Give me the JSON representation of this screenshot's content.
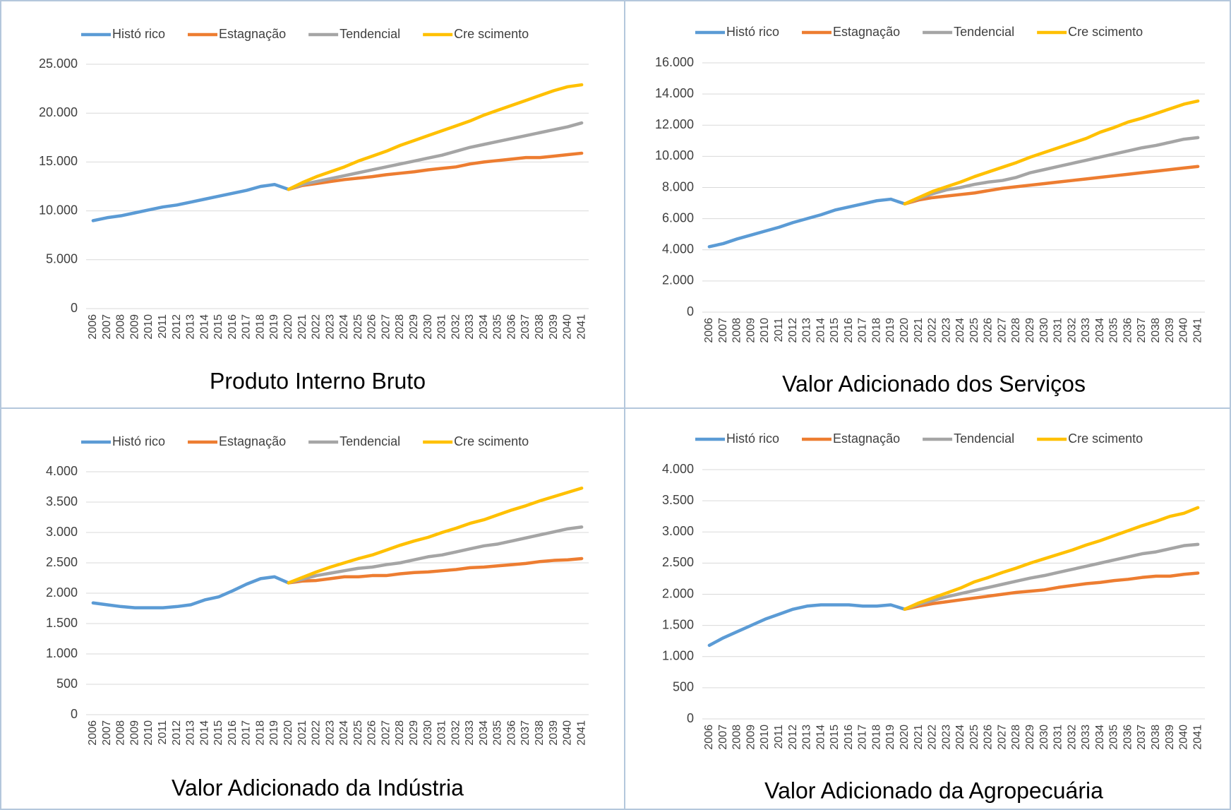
{
  "chart_data": [
    {
      "type": "line",
      "title": "Produto Interno Bruto",
      "categories": [
        "2006",
        "2007",
        "2008",
        "2009",
        "2010",
        "2011",
        "2012",
        "2013",
        "2014",
        "2015",
        "2016",
        "2017",
        "2018",
        "2019",
        "2020",
        "2021",
        "2022",
        "2023",
        "2024",
        "2025",
        "2026",
        "2027",
        "2028",
        "2029",
        "2030",
        "2031",
        "2032",
        "2033",
        "2034",
        "2035",
        "2036",
        "2037",
        "2038",
        "2039",
        "2040",
        "2041"
      ],
      "series": [
        {
          "name": "Histó rico",
          "color": "#5b9bd5",
          "values": [
            9000,
            9300,
            9500,
            9800,
            10100,
            10400,
            10600,
            10900,
            11200,
            11500,
            11800,
            12100,
            12500,
            12700,
            12200,
            null,
            null,
            null,
            null,
            null,
            null,
            null,
            null,
            null,
            null,
            null,
            null,
            null,
            null,
            null,
            null,
            null,
            null,
            null,
            null,
            null
          ]
        },
        {
          "name": "Estagnação",
          "color": "#ed7d31",
          "values": [
            null,
            null,
            null,
            null,
            null,
            null,
            null,
            null,
            null,
            null,
            null,
            null,
            null,
            null,
            12200,
            12600,
            12800,
            13000,
            13200,
            13350,
            13500,
            13700,
            13850,
            14000,
            14200,
            14350,
            14500,
            14800,
            15000,
            15150,
            15300,
            15450,
            15450,
            15600,
            15750,
            15900
          ]
        },
        {
          "name": "Tendencial",
          "color": "#a5a5a5",
          "values": [
            null,
            null,
            null,
            null,
            null,
            null,
            null,
            null,
            null,
            null,
            null,
            null,
            null,
            null,
            12200,
            12700,
            13000,
            13300,
            13600,
            13900,
            14200,
            14500,
            14800,
            15100,
            15400,
            15700,
            16100,
            16500,
            16800,
            17100,
            17400,
            17700,
            18000,
            18300,
            18600,
            19000
          ]
        },
        {
          "name": "Cre scimento",
          "color": "#ffc000",
          "values": [
            null,
            null,
            null,
            null,
            null,
            null,
            null,
            null,
            null,
            null,
            null,
            null,
            null,
            null,
            12200,
            12900,
            13500,
            14000,
            14500,
            15100,
            15600,
            16100,
            16700,
            17200,
            17700,
            18200,
            18700,
            19200,
            19800,
            20300,
            20800,
            21300,
            21800,
            22300,
            22700,
            22900
          ]
        }
      ],
      "ylim": [
        0,
        25000
      ],
      "yticks": [
        0,
        {
          "value": 5000,
          "label": "5.000"
        },
        {
          "value": 10000,
          "label": "10.000"
        },
        {
          "value": 15000,
          "label": "15.000"
        },
        {
          "value": 20000,
          "label": "20.000"
        },
        {
          "value": 25000,
          "label": "25.000"
        }
      ],
      "grid": true,
      "legend": "top"
    },
    {
      "type": "line",
      "title": "Valor Adicionado dos Serviços",
      "categories": [
        "2006",
        "2007",
        "2008",
        "2009",
        "2010",
        "2011",
        "2012",
        "2013",
        "2014",
        "2015",
        "2016",
        "2017",
        "2018",
        "2019",
        "2020",
        "2021",
        "2022",
        "2023",
        "2024",
        "2025",
        "2026",
        "2027",
        "2028",
        "2029",
        "2030",
        "2031",
        "2032",
        "2033",
        "2034",
        "2035",
        "2036",
        "2037",
        "2038",
        "2039",
        "2040",
        "2041"
      ],
      "series": [
        {
          "name": "Histó rico",
          "color": "#5b9bd5",
          "values": [
            4200,
            4400,
            4700,
            4950,
            5200,
            5450,
            5750,
            6000,
            6250,
            6550,
            6750,
            6950,
            7150,
            7250,
            6950,
            null,
            null,
            null,
            null,
            null,
            null,
            null,
            null,
            null,
            null,
            null,
            null,
            null,
            null,
            null,
            null,
            null,
            null,
            null,
            null,
            null
          ]
        },
        {
          "name": "Estagnação",
          "color": "#ed7d31",
          "values": [
            null,
            null,
            null,
            null,
            null,
            null,
            null,
            null,
            null,
            null,
            null,
            null,
            null,
            null,
            6950,
            7200,
            7350,
            7450,
            7550,
            7650,
            7800,
            7950,
            8050,
            8150,
            8250,
            8350,
            8450,
            8550,
            8650,
            8750,
            8850,
            8950,
            9050,
            9150,
            9250,
            9350
          ]
        },
        {
          "name": "Tendencial",
          "color": "#a5a5a5",
          "values": [
            null,
            null,
            null,
            null,
            null,
            null,
            null,
            null,
            null,
            null,
            null,
            null,
            null,
            null,
            6950,
            7300,
            7600,
            7850,
            8000,
            8200,
            8350,
            8450,
            8650,
            8950,
            9150,
            9350,
            9550,
            9750,
            9950,
            10150,
            10350,
            10550,
            10700,
            10900,
            11100,
            11200
          ]
        },
        {
          "name": "Cre scimento",
          "color": "#ffc000",
          "values": [
            null,
            null,
            null,
            null,
            null,
            null,
            null,
            null,
            null,
            null,
            null,
            null,
            null,
            null,
            6950,
            7350,
            7750,
            8050,
            8350,
            8700,
            9000,
            9300,
            9600,
            9950,
            10250,
            10550,
            10850,
            11150,
            11550,
            11850,
            12200,
            12450,
            12750,
            13050,
            13350,
            13550
          ]
        }
      ],
      "ylim": [
        0,
        16000
      ],
      "yticks": [
        0,
        {
          "value": 2000,
          "label": "2.000"
        },
        {
          "value": 4000,
          "label": "4.000"
        },
        {
          "value": 6000,
          "label": "6.000"
        },
        {
          "value": 8000,
          "label": "8.000"
        },
        {
          "value": 10000,
          "label": "10.000"
        },
        {
          "value": 12000,
          "label": "12.000"
        },
        {
          "value": 14000,
          "label": "14.000"
        },
        {
          "value": 16000,
          "label": "16.000"
        }
      ],
      "grid": true,
      "legend": "top"
    },
    {
      "type": "line",
      "title": "Valor Adicionado da Indústria",
      "categories": [
        "2006",
        "2007",
        "2008",
        "2009",
        "2010",
        "2011",
        "2012",
        "2013",
        "2014",
        "2015",
        "2016",
        "2017",
        "2018",
        "2019",
        "2020",
        "2021",
        "2022",
        "2023",
        "2024",
        "2025",
        "2026",
        "2027",
        "2028",
        "2029",
        "2030",
        "2031",
        "2032",
        "2033",
        "2034",
        "2035",
        "2036",
        "2037",
        "2038",
        "2039",
        "2040",
        "2041"
      ],
      "series": [
        {
          "name": "Histó rico",
          "color": "#5b9bd5",
          "values": [
            1840,
            1810,
            1780,
            1760,
            1760,
            1760,
            1780,
            1810,
            1890,
            1940,
            2040,
            2150,
            2240,
            2270,
            2170,
            null,
            null,
            null,
            null,
            null,
            null,
            null,
            null,
            null,
            null,
            null,
            null,
            null,
            null,
            null,
            null,
            null,
            null,
            null,
            null,
            null
          ]
        },
        {
          "name": "Estagnação",
          "color": "#ed7d31",
          "values": [
            null,
            null,
            null,
            null,
            null,
            null,
            null,
            null,
            null,
            null,
            null,
            null,
            null,
            null,
            2170,
            2200,
            2210,
            2240,
            2270,
            2270,
            2290,
            2290,
            2320,
            2340,
            2350,
            2370,
            2390,
            2420,
            2430,
            2450,
            2470,
            2490,
            2520,
            2540,
            2550,
            2570
          ]
        },
        {
          "name": "Tendencial",
          "color": "#a5a5a5",
          "values": [
            null,
            null,
            null,
            null,
            null,
            null,
            null,
            null,
            null,
            null,
            null,
            null,
            null,
            null,
            2170,
            2230,
            2290,
            2330,
            2370,
            2410,
            2430,
            2470,
            2500,
            2550,
            2600,
            2630,
            2680,
            2730,
            2780,
            2810,
            2860,
            2910,
            2960,
            3010,
            3060,
            3090
          ]
        },
        {
          "name": "Cre scimento",
          "color": "#ffc000",
          "values": [
            null,
            null,
            null,
            null,
            null,
            null,
            null,
            null,
            null,
            null,
            null,
            null,
            null,
            null,
            2170,
            2260,
            2350,
            2430,
            2500,
            2570,
            2630,
            2710,
            2790,
            2860,
            2920,
            3000,
            3070,
            3150,
            3210,
            3290,
            3370,
            3440,
            3520,
            3590,
            3660,
            3730
          ]
        }
      ],
      "ylim": [
        0,
        4000
      ],
      "yticks": [
        0,
        500,
        {
          "value": 1000,
          "label": "1.000"
        },
        {
          "value": 1500,
          "label": "1.500"
        },
        {
          "value": 2000,
          "label": "2.000"
        },
        {
          "value": 2500,
          "label": "2.500"
        },
        {
          "value": 3000,
          "label": "3.000"
        },
        {
          "value": 3500,
          "label": "3.500"
        },
        {
          "value": 4000,
          "label": "4.000"
        }
      ],
      "grid": true,
      "legend": "top"
    },
    {
      "type": "line",
      "title": "Valor Adicionado da Agropecuária",
      "categories": [
        "2006",
        "2007",
        "2008",
        "2009",
        "2010",
        "2011",
        "2012",
        "2013",
        "2014",
        "2015",
        "2016",
        "2017",
        "2018",
        "2019",
        "2020",
        "2021",
        "2022",
        "2023",
        "2024",
        "2025",
        "2026",
        "2027",
        "2028",
        "2029",
        "2030",
        "2031",
        "2032",
        "2033",
        "2034",
        "2035",
        "2036",
        "2037",
        "2038",
        "2039",
        "2040",
        "2041"
      ],
      "series": [
        {
          "name": "Histó rico",
          "color": "#5b9bd5",
          "values": [
            1180,
            1300,
            1400,
            1500,
            1600,
            1680,
            1760,
            1810,
            1830,
            1830,
            1830,
            1810,
            1810,
            1830,
            1760,
            null,
            null,
            null,
            null,
            null,
            null,
            null,
            null,
            null,
            null,
            null,
            null,
            null,
            null,
            null,
            null,
            null,
            null,
            null,
            null,
            null
          ]
        },
        {
          "name": "Estagnação",
          "color": "#ed7d31",
          "values": [
            null,
            null,
            null,
            null,
            null,
            null,
            null,
            null,
            null,
            null,
            null,
            null,
            null,
            null,
            1760,
            1810,
            1850,
            1880,
            1910,
            1940,
            1970,
            2000,
            2030,
            2050,
            2070,
            2110,
            2140,
            2170,
            2190,
            2220,
            2240,
            2270,
            2290,
            2290,
            2320,
            2340
          ]
        },
        {
          "name": "Tendencial",
          "color": "#a5a5a5",
          "values": [
            null,
            null,
            null,
            null,
            null,
            null,
            null,
            null,
            null,
            null,
            null,
            null,
            null,
            null,
            1760,
            1840,
            1900,
            1960,
            2010,
            2060,
            2110,
            2160,
            2210,
            2260,
            2300,
            2350,
            2400,
            2450,
            2500,
            2550,
            2600,
            2650,
            2680,
            2730,
            2780,
            2800
          ]
        },
        {
          "name": "Cre scimento",
          "color": "#ffc000",
          "values": [
            null,
            null,
            null,
            null,
            null,
            null,
            null,
            null,
            null,
            null,
            null,
            null,
            null,
            null,
            1760,
            1860,
            1940,
            2020,
            2100,
            2200,
            2270,
            2350,
            2420,
            2500,
            2570,
            2640,
            2710,
            2790,
            2860,
            2940,
            3020,
            3100,
            3170,
            3250,
            3300,
            3390
          ]
        }
      ],
      "ylim": [
        0,
        4000
      ],
      "yticks": [
        0,
        500,
        {
          "value": 1000,
          "label": "1.000"
        },
        {
          "value": 1500,
          "label": "1.500"
        },
        {
          "value": 2000,
          "label": "2.000"
        },
        {
          "value": 2500,
          "label": "2.500"
        },
        {
          "value": 3000,
          "label": "3.000"
        },
        {
          "value": 3500,
          "label": "3.500"
        },
        {
          "value": 4000,
          "label": "4.000"
        }
      ],
      "grid": true,
      "legend": "top"
    }
  ]
}
